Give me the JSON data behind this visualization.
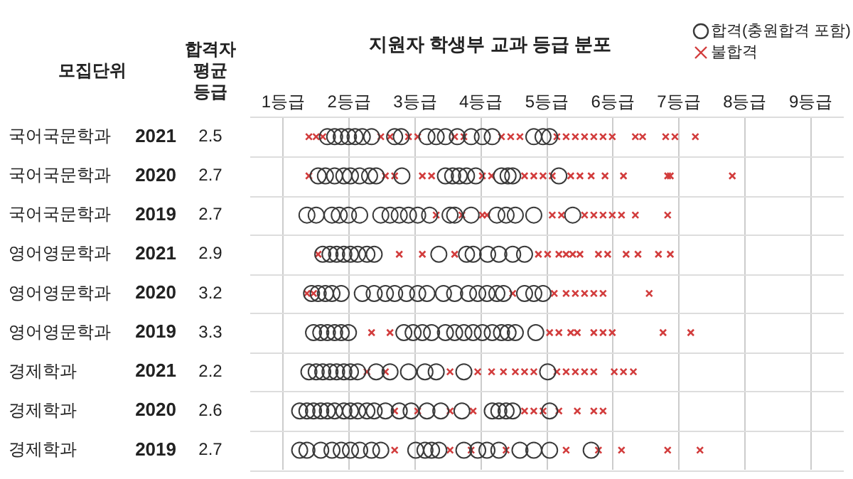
{
  "chart_data": {
    "type": "scatter",
    "orientation": "horizontal",
    "title": "지원자 학생부 교과 등급 분포",
    "categories": [
      "국어국문학과 2021",
      "국어국문학과 2020",
      "국어국문학과 2019",
      "영어영문학과 2021",
      "영어영문학과 2020",
      "영어영문학과 2019",
      "경제학과 2021",
      "경제학과 2020",
      "경제학과 2019"
    ],
    "xlim": [
      0.5,
      9.5
    ],
    "xticks": [
      {
        "value": 1,
        "label": "1등급"
      },
      {
        "value": 2,
        "label": "2등급"
      },
      {
        "value": 3,
        "label": "3등급"
      },
      {
        "value": 4,
        "label": "4등급"
      },
      {
        "value": 5,
        "label": "5등급"
      },
      {
        "value": 6,
        "label": "6등급"
      },
      {
        "value": 7,
        "label": "7등급"
      },
      {
        "value": 8,
        "label": "8등급"
      },
      {
        "value": 9,
        "label": "9등급"
      }
    ],
    "grid": "x",
    "legend": "top right",
    "annotations": [
      "모집단위",
      "합격자 평균 등급",
      "2.5",
      "2.7",
      "2.7",
      "2.9",
      "3.2",
      "3.3",
      "2.2",
      "2.6",
      "2.7"
    ],
    "series": [
      {
        "name": "합격(충원합격 포함)",
        "color": "#3a3a3a",
        "marker": "circle",
        "x": [
          "국어국문학과 2021",
          "국어국문학과 2021",
          "국어국문학과 2021",
          "국어국문학과 2021",
          "국어국문학과 2021",
          "국어국문학과 2021",
          "국어국문학과 2021",
          "국어국문학과 2021",
          "국어국문학과 2021",
          "국어국문학과 2021",
          "국어국문학과 2021",
          "국어국문학과 2021",
          "국어국문학과 2021",
          "국어국문학과 2021",
          "국어국문학과 2021",
          "국어국문학과 2021",
          "국어국문학과 2021",
          "국어국문학과 2021",
          "국어국문학과 2021",
          "국어국문학과 2020",
          "국어국문학과 2020",
          "국어국문학과 2020",
          "국어국문학과 2020",
          "국어국문학과 2020",
          "국어국문학과 2020",
          "국어국문학과 2020",
          "국어국문학과 2020",
          "국어국문학과 2020",
          "국어국문학과 2020",
          "국어국문학과 2020",
          "국어국문학과 2020",
          "국어국문학과 2020",
          "국어국문학과 2020",
          "국어국문학과 2020",
          "국어국문학과 2020",
          "국어국문학과 2020",
          "국어국문학과 2020",
          "국어국문학과 2019",
          "국어국문학과 2019",
          "국어국문학과 2019",
          "국어국문학과 2019",
          "국어국문학과 2019",
          "국어국문학과 2019",
          "국어국문학과 2019",
          "국어국문학과 2019",
          "국어국문학과 2019",
          "국어국문학과 2019",
          "국어국문학과 2019",
          "국어국문학과 2019",
          "국어국문학과 2019",
          "국어국문학과 2019",
          "국어국문학과 2019",
          "국어국문학과 2019",
          "국어국문학과 2019",
          "국어국문학과 2019",
          "국어국문학과 2019",
          "국어국문학과 2019",
          "영어영문학과 2021",
          "영어영문학과 2021",
          "영어영문학과 2021",
          "영어영문학과 2021",
          "영어영문학과 2021",
          "영어영문학과 2021",
          "영어영문학과 2021",
          "영어영문학과 2021",
          "영어영문학과 2021",
          "영어영문학과 2021",
          "영어영문학과 2021",
          "영어영문학과 2021",
          "영어영문학과 2021",
          "영어영문학과 2021",
          "영어영문학과 2021",
          "영어영문학과 2020",
          "영어영문학과 2020",
          "영어영문학과 2020",
          "영어영문학과 2020",
          "영어영문학과 2020",
          "영어영문학과 2020",
          "영어영문학과 2020",
          "영어영문학과 2020",
          "영어영문학과 2020",
          "영어영문학과 2020",
          "영어영문학과 2020",
          "영어영문학과 2020",
          "영어영문학과 2020",
          "영어영문학과 2020",
          "영어영문학과 2020",
          "영어영문학과 2020",
          "영어영문학과 2020",
          "영어영문학과 2020",
          "영어영문학과 2020",
          "영어영문학과 2020",
          "영어영문학과 2020",
          "영어영문학과 2020",
          "영어영문학과 2019",
          "영어영문학과 2019",
          "영어영문학과 2019",
          "영어영문학과 2019",
          "영어영문학과 2019",
          "영어영문학과 2019",
          "영어영문학과 2019",
          "영어영문학과 2019",
          "영어영문학과 2019",
          "영어영문학과 2019",
          "영어영문학과 2019",
          "영어영문학과 2019",
          "영어영문학과 2019",
          "영어영문학과 2019",
          "영어영문학과 2019",
          "영어영문학과 2019",
          "영어영문학과 2019",
          "영어영문학과 2019",
          "영어영문학과 2019",
          "영어영문학과 2019",
          "경제학과 2021",
          "경제학과 2021",
          "경제학과 2021",
          "경제학과 2021",
          "경제학과 2021",
          "경제학과 2021",
          "경제학과 2021",
          "경제학과 2021",
          "경제학과 2021",
          "경제학과 2021",
          "경제학과 2021",
          "경제학과 2021",
          "경제학과 2021",
          "경제학과 2021",
          "경제학과 2021",
          "경제학과 2020",
          "경제학과 2020",
          "경제학과 2020",
          "경제학과 2020",
          "경제학과 2020",
          "경제학과 2020",
          "경제학과 2020",
          "경제학과 2020",
          "경제학과 2020",
          "경제학과 2020",
          "경제학과 2020",
          "경제학과 2020",
          "경제학과 2020",
          "경제학과 2020",
          "경제학과 2020",
          "경제학과 2020",
          "경제학과 2020",
          "경제학과 2020",
          "경제학과 2020",
          "경제학과 2020",
          "경제학과 2020",
          "경제학과 2020",
          "경제학과 2019",
          "경제학과 2019",
          "경제학과 2019",
          "경제학과 2019",
          "경제학과 2019",
          "경제학과 2019",
          "경제학과 2019",
          "경제학과 2019",
          "경제학과 2019",
          "경제학과 2019",
          "경제학과 2019",
          "경제학과 2019",
          "경제학과 2019",
          "경제학과 2019",
          "경제학과 2019",
          "경제학과 2019",
          "경제학과 2019",
          "경제학과 2019",
          "경제학과 2019",
          "경제학과 2019",
          "경제학과 2019"
        ],
        "values": [
          1.67,
          1.78,
          1.88,
          1.99,
          2.09,
          2.2,
          2.34,
          2.69,
          2.79,
          3.18,
          3.32,
          3.46,
          3.64,
          3.85,
          4.02,
          4.17,
          4.8,
          4.94,
          5.04,
          1.53,
          1.64,
          1.78,
          1.92,
          2.02,
          2.16,
          2.31,
          2.41,
          2.8,
          3.46,
          3.57,
          3.67,
          3.78,
          3.92,
          4.31,
          4.41,
          4.48,
          5.18,
          1.36,
          1.5,
          1.74,
          1.85,
          1.99,
          2.16,
          2.48,
          2.62,
          2.76,
          2.9,
          3.04,
          3.22,
          3.53,
          3.6,
          3.85,
          4.24,
          4.38,
          4.52,
          4.8,
          5.39,
          1.6,
          1.71,
          1.81,
          1.92,
          2.02,
          2.13,
          2.27,
          2.38,
          3.36,
          3.78,
          3.88,
          4.1,
          4.27,
          4.48,
          4.66,
          1.43,
          1.53,
          1.64,
          1.74,
          1.88,
          2.2,
          2.38,
          2.55,
          2.69,
          2.87,
          3.04,
          3.18,
          3.43,
          3.6,
          3.81,
          3.95,
          4.09,
          4.24,
          4.34,
          4.66,
          4.8,
          4.94,
          1.46,
          1.57,
          1.67,
          1.78,
          1.88,
          1.99,
          2.83,
          2.97,
          3.11,
          3.25,
          3.46,
          3.6,
          3.74,
          3.88,
          4.02,
          4.17,
          4.31,
          4.41,
          4.52,
          4.83,
          1.39,
          1.5,
          1.6,
          1.71,
          1.81,
          1.92,
          2.02,
          2.13,
          2.41,
          2.62,
          2.9,
          3.15,
          3.32,
          3.74,
          5.01,
          1.25,
          1.36,
          1.46,
          1.57,
          1.67,
          1.78,
          1.92,
          2.02,
          2.13,
          2.27,
          2.38,
          2.55,
          2.76,
          2.94,
          3.18,
          3.39,
          3.71,
          4.17,
          4.27,
          4.38,
          4.48,
          5.04,
          1.25,
          1.36,
          1.57,
          1.74,
          1.88,
          2.02,
          2.16,
          2.34,
          2.48,
          3.01,
          3.15,
          3.25,
          3.36,
          3.74,
          3.95,
          4.09,
          4.27,
          4.59,
          4.8,
          5.04,
          5.67
        ]
      },
      {
        "name": "불합격",
        "color": "#d23c3c",
        "marker": "cross",
        "x": [
          "국어국문학과 2021",
          "국어국문학과 2021",
          "국어국문학과 2021",
          "국어국문학과 2021",
          "국어국문학과 2021",
          "국어국문학과 2021",
          "국어국문학과 2021",
          "국어국문학과 2021",
          "국어국문학과 2021",
          "국어국문학과 2021",
          "국어국문학과 2021",
          "국어국문학과 2021",
          "국어국문학과 2021",
          "국어국문학과 2021",
          "국어국문학과 2021",
          "국어국문학과 2021",
          "국어국문학과 2021",
          "국어국문학과 2021",
          "국어국문학과 2021",
          "국어국문학과 2021",
          "국어국문학과 2021",
          "국어국문학과 2021",
          "국어국문학과 2021",
          "국어국문학과 2021",
          "국어국문학과 2020",
          "국어국문학과 2020",
          "국어국문학과 2020",
          "국어국문학과 2020",
          "국어국문학과 2020",
          "국어국문학과 2020",
          "국어국문학과 2020",
          "국어국문학과 2020",
          "국어국문학과 2020",
          "국어국문학과 2020",
          "국어국문학과 2020",
          "국어국문학과 2020",
          "국어국문학과 2020",
          "국어국문학과 2020",
          "국어국문학과 2020",
          "국어국문학과 2020",
          "국어국문학과 2020",
          "국어국문학과 2020",
          "국어국문학과 2020",
          "국어국문학과 2019",
          "국어국문학과 2019",
          "국어국문학과 2019",
          "국어국문학과 2019",
          "국어국문학과 2019",
          "국어국문학과 2019",
          "국어국문학과 2019",
          "국어국문학과 2019",
          "국어국문학과 2019",
          "국어국문학과 2019",
          "국어국문학과 2019",
          "국어국문학과 2019",
          "국어국문학과 2019",
          "영어영문학과 2021",
          "영어영문학과 2021",
          "영어영문학과 2021",
          "영어영문학과 2021",
          "영어영문학과 2021",
          "영어영문학과 2021",
          "영어영문학과 2021",
          "영어영문학과 2021",
          "영어영문학과 2021",
          "영어영문학과 2021",
          "영어영문학과 2021",
          "영어영문학과 2021",
          "영어영문학과 2021",
          "영어영문학과 2021",
          "영어영문학과 2021",
          "영어영문학과 2021",
          "영어영문학과 2020",
          "영어영문학과 2020",
          "영어영문학과 2020",
          "영어영문학과 2020",
          "영어영문학과 2020",
          "영어영문학과 2020",
          "영어영문학과 2020",
          "영어영문학과 2020",
          "영어영문학과 2020",
          "영어영문학과 2020",
          "영어영문학과 2019",
          "영어영문학과 2019",
          "영어영문학과 2019",
          "영어영문학과 2019",
          "영어영문학과 2019",
          "영어영문학과 2019",
          "영어영문학과 2019",
          "영어영문학과 2019",
          "영어영문학과 2019",
          "영어영문학과 2019",
          "영어영문학과 2019",
          "경제학과 2021",
          "경제학과 2021",
          "경제학과 2021",
          "경제학과 2021",
          "경제학과 2021",
          "경제학과 2021",
          "경제학과 2021",
          "경제학과 2021",
          "경제학과 2021",
          "경제학과 2021",
          "경제학과 2021",
          "경제학과 2021",
          "경제학과 2021",
          "경제학과 2021",
          "경제학과 2021",
          "경제학과 2021",
          "경제학과 2021",
          "경제학과 2020",
          "경제학과 2020",
          "경제학과 2020",
          "경제학과 2020",
          "경제학과 2020",
          "경제학과 2020",
          "경제학과 2020",
          "경제학과 2020",
          "경제학과 2020",
          "경제학과 2020",
          "경제학과 2020",
          "경제학과 2019",
          "경제학과 2019",
          "경제학과 2019",
          "경제학과 2019",
          "경제학과 2019",
          "경제학과 2019",
          "경제학과 2019",
          "경제학과 2019",
          "경제학과 2019"
        ],
        "values": [
          1.39,
          1.5,
          1.6,
          2.48,
          2.62,
          2.9,
          3.04,
          3.6,
          3.74,
          4.31,
          4.45,
          4.59,
          5.15,
          5.29,
          5.43,
          5.57,
          5.71,
          5.85,
          5.99,
          6.34,
          6.45,
          6.8,
          6.94,
          7.25,
          1.39,
          2.55,
          2.69,
          3.11,
          3.25,
          4.02,
          4.16,
          4.66,
          4.8,
          4.94,
          5.08,
          5.36,
          5.5,
          5.67,
          5.88,
          6.16,
          6.83,
          6.87,
          7.81,
          3.32,
          3.71,
          4.02,
          4.09,
          5.08,
          5.22,
          5.57,
          5.71,
          5.85,
          5.99,
          6.13,
          6.34,
          6.83,
          1.53,
          2.76,
          3.11,
          3.6,
          4.87,
          5.01,
          5.18,
          5.29,
          5.39,
          5.5,
          5.78,
          5.92,
          6.2,
          6.38,
          6.69,
          6.87,
          1.36,
          1.46,
          4.48,
          5.11,
          5.29,
          5.43,
          5.57,
          5.71,
          5.85,
          6.55,
          2.34,
          2.62,
          5.04,
          5.18,
          5.36,
          5.46,
          5.71,
          5.85,
          5.99,
          6.76,
          7.18,
          2.27,
          2.55,
          3.53,
          3.95,
          4.16,
          4.34,
          4.52,
          4.66,
          4.8,
          5.15,
          5.29,
          5.43,
          5.57,
          5.71,
          6.02,
          6.16,
          6.31,
          2.69,
          3.04,
          3.53,
          3.88,
          4.66,
          4.8,
          4.94,
          5.18,
          5.46,
          5.71,
          5.85,
          2.69,
          3.53,
          3.85,
          4.38,
          5.29,
          5.78,
          6.13,
          6.83,
          7.32
        ]
      }
    ]
  }
}
